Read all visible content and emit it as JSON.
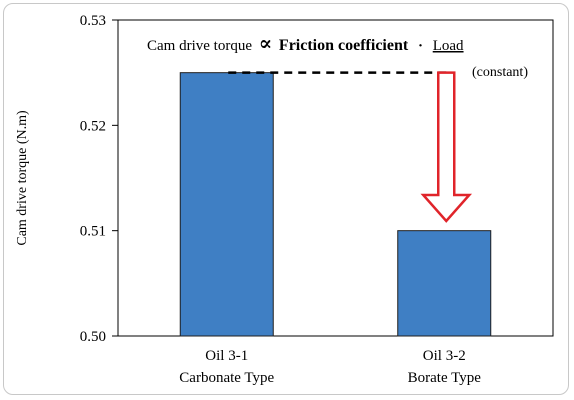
{
  "chart_data": {
    "type": "bar",
    "ylabel": "Cam drive torque (N.m)",
    "xlabel": "",
    "ylim": [
      0.5,
      0.53
    ],
    "yticks": [
      "0.50",
      "0.51",
      "0.52",
      "0.53"
    ],
    "ytick_values": [
      0.5,
      0.51,
      0.52,
      0.53
    ],
    "categories": [
      [
        "Oil 3-1",
        "Carbonate Type"
      ],
      [
        "Oil 3-2",
        "Borate Type"
      ]
    ],
    "values": [
      0.525,
      0.51
    ],
    "bar_color": "#3f7fc4",
    "bar_edge_color": "#1f1f1f",
    "grid": false,
    "annotation": {
      "prefix": "Cam drive torque",
      "proportional": "∝",
      "emphasis": "Friction coefficient",
      "dot": "·",
      "load": "Load",
      "load_note": "(constant)",
      "arrow_color": "#e0242a",
      "dash_level": 0.525
    }
  }
}
